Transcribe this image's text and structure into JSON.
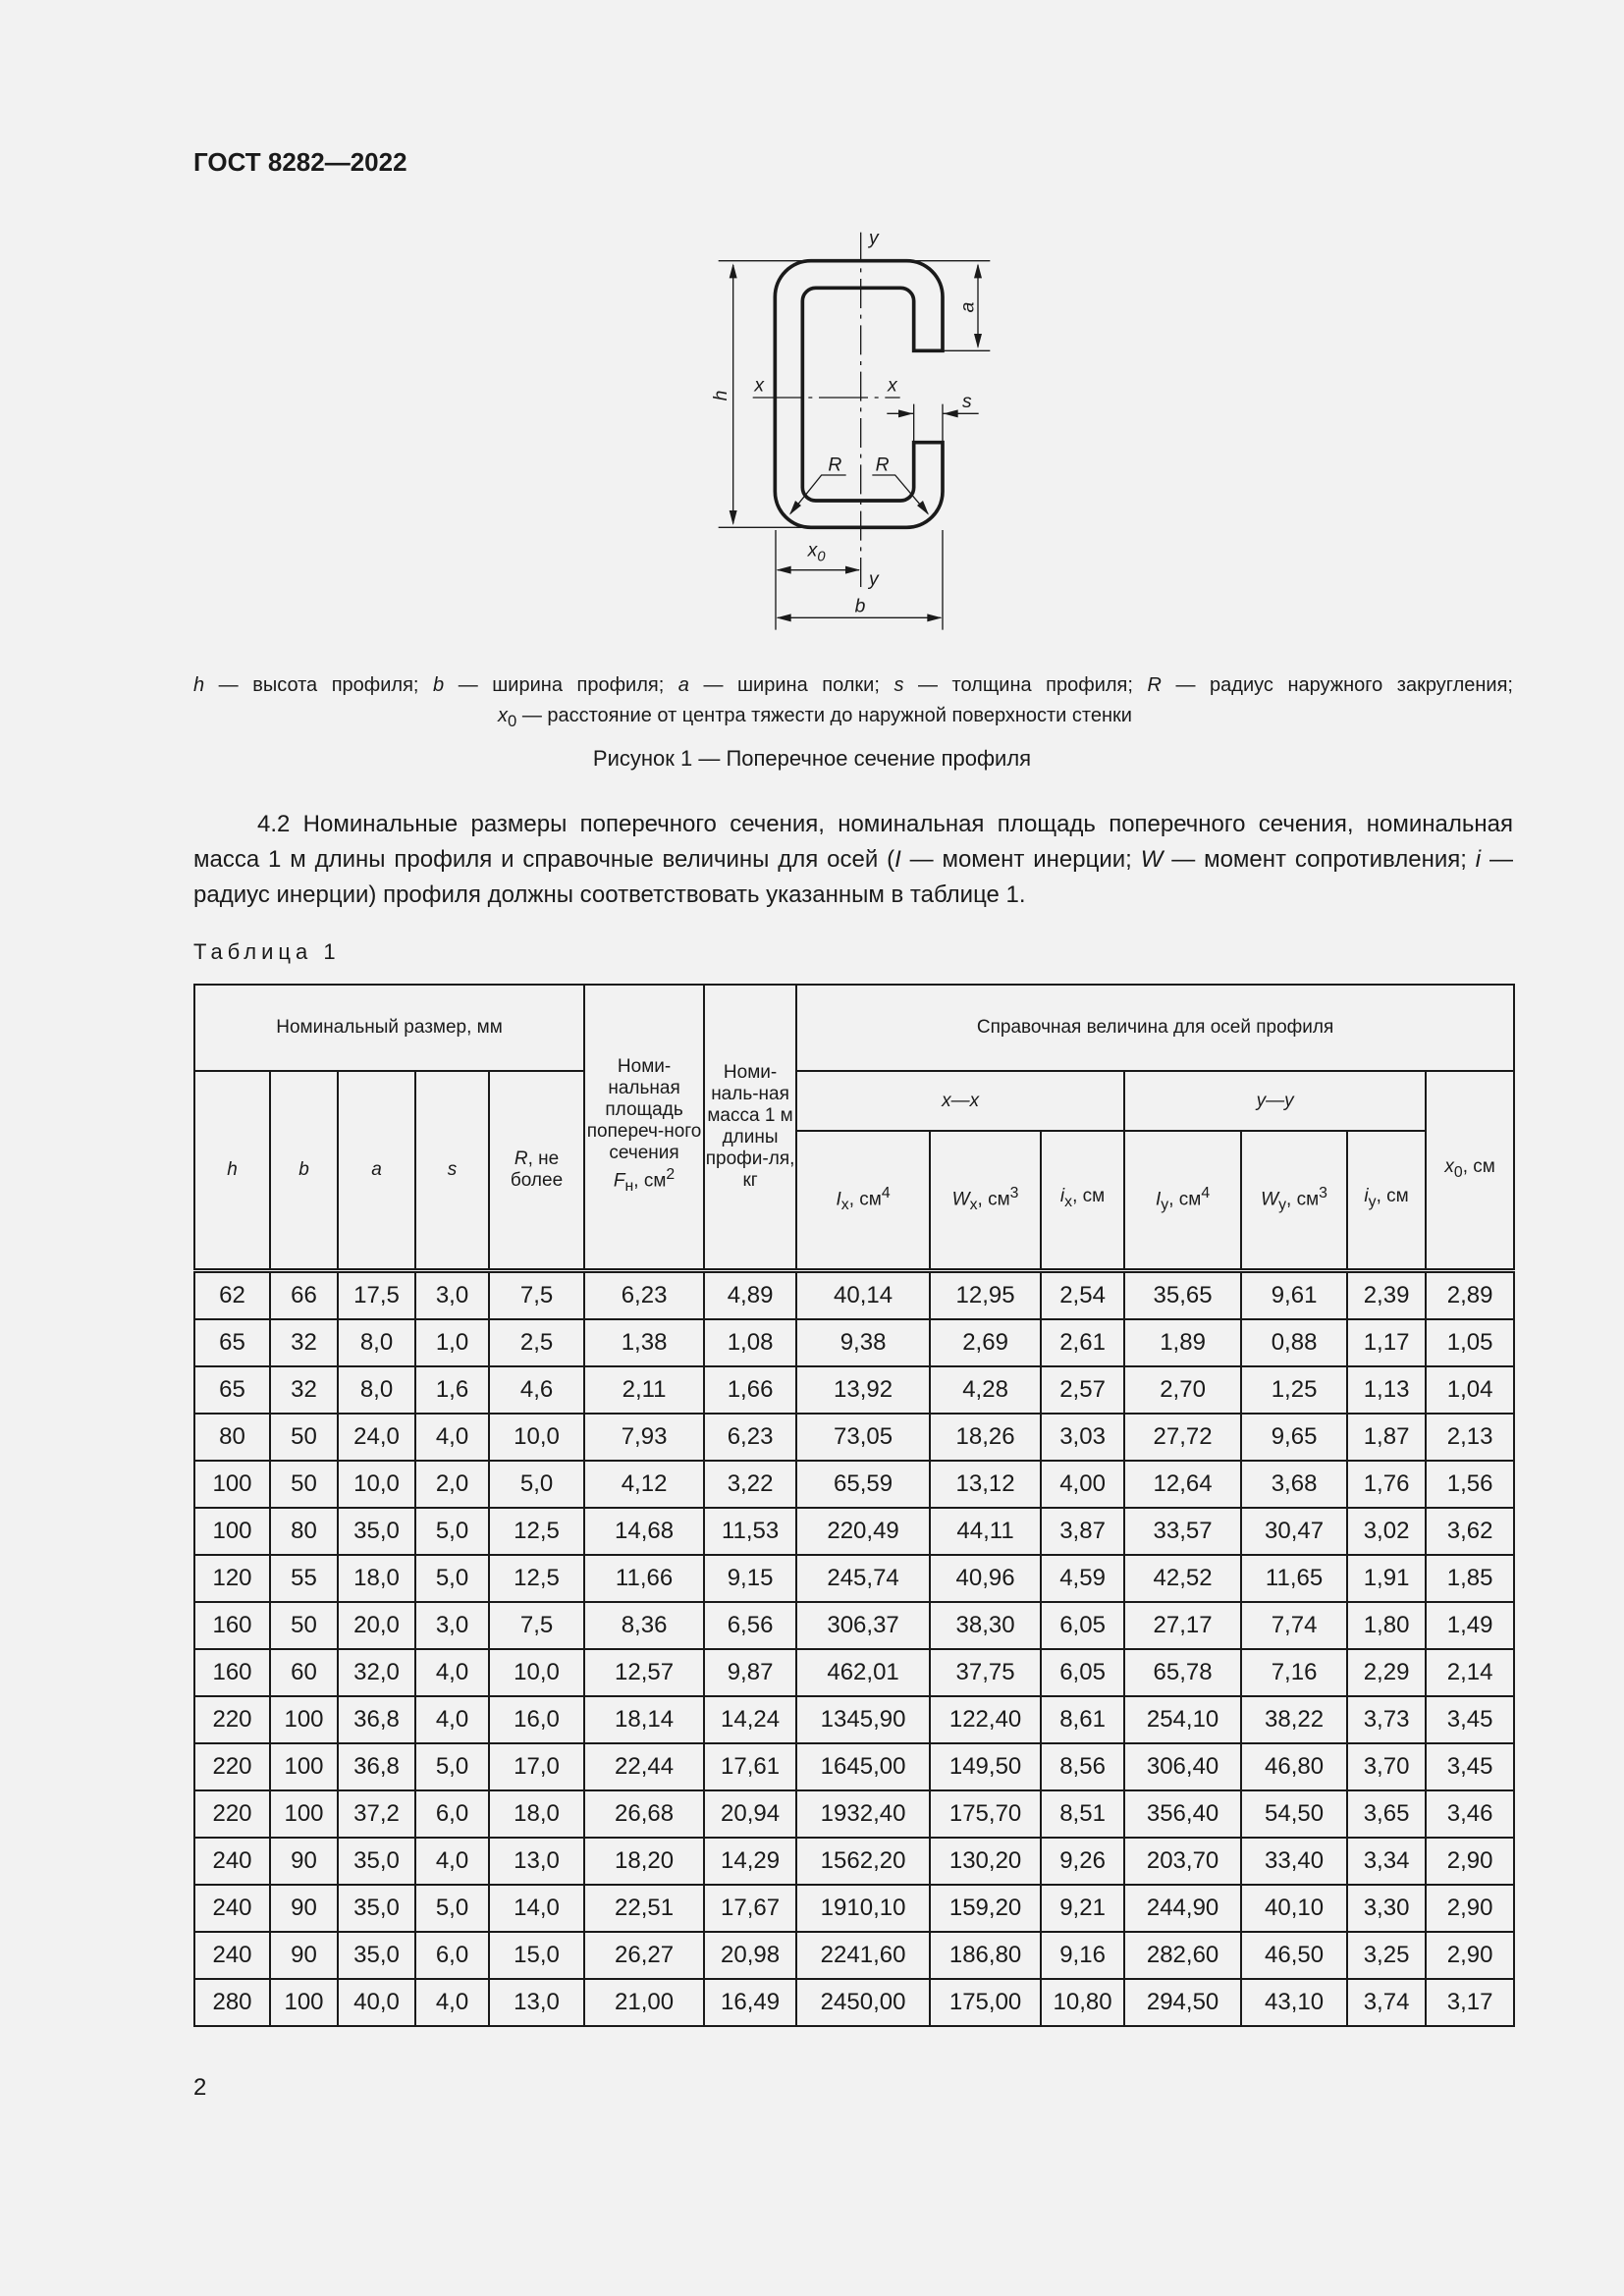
{
  "header": {
    "doc_id": "ГОСТ 8282—2022"
  },
  "figure": {
    "labels": {
      "y_top": "y",
      "y_bottom": "y",
      "x_left": "x",
      "x_right": "x",
      "h": "h",
      "a": "a",
      "s": "s",
      "R_left": "R",
      "R_right": "R",
      "x0": "x",
      "x0_sub": "0",
      "b": "b"
    },
    "legend": {
      "line1": [
        {
          "sym": "h",
          "text": " — высота профиля;  "
        },
        {
          "sym": "b",
          "text": " — ширина профиля; "
        },
        {
          "sym": "a",
          "text": " — ширина полки; "
        },
        {
          "sym": "s",
          "text": " — толщина профиля; "
        },
        {
          "sym": "R",
          "text": " — радиус наружного закругления;"
        }
      ],
      "line2": {
        "sym": "x",
        "sub": "0",
        "text": "  — расстояние от центра тяжести до наружной поверхности стенки"
      }
    },
    "caption": "Рисунок 1 — Поперечное сечение профиля"
  },
  "paragraph": {
    "p1": "4.2 Номинальные размеры поперечного сечения, номинальная площадь поперечного сечения, номинальная масса 1 м длины профиля и справочные величины для осей (",
    "s1": "I",
    "p2": " — момент инерции; ",
    "s2": "W",
    "p3": " — момент сопротивления; ",
    "s3": "i",
    "p4": " — радиус инерции) профиля должны соответствовать указанным в таблице 1."
  },
  "table": {
    "title": "Таблица 1",
    "headers": {
      "nominal_size": "Номинальный размер, мм",
      "h": "h",
      "b": "b",
      "a": "a",
      "s": "s",
      "R": "R",
      "R_suffix": ", не более",
      "area": "Номи-нальная площадь попереч-ного сечения",
      "area_sym": "F",
      "area_sub": "н",
      "area_unit": ", см",
      "area_sup": "2",
      "mass": "Номи-наль-ная масса 1 м длины профи-ля, кг",
      "reference": "Справочная величина для осей профиля",
      "xx": "x—x",
      "yy": "y—y",
      "Ix": {
        "sym": "I",
        "sub": "x",
        "unit": ", см",
        "sup": "4"
      },
      "Wx": {
        "sym": "W",
        "sub": "x",
        "unit": ", см",
        "sup": "3"
      },
      "ix": {
        "sym": "i",
        "sub": "x",
        "unit": ", см",
        "sup": ""
      },
      "Iy": {
        "sym": "I",
        "sub": "y",
        "unit": ", см",
        "sup": "4"
      },
      "Wy": {
        "sym": "W",
        "sub": "y",
        "unit": ", см",
        "sup": "3"
      },
      "iy": {
        "sym": "i",
        "sub": "y",
        "unit": ", см",
        "sup": ""
      },
      "x0": {
        "sym": "x",
        "sub": "0",
        "unit": ", см",
        "sup": ""
      }
    },
    "rows": [
      [
        "62",
        "66",
        "17,5",
        "3,0",
        "7,5",
        "6,23",
        "4,89",
        "40,14",
        "12,95",
        "2,54",
        "35,65",
        "9,61",
        "2,39",
        "2,89"
      ],
      [
        "65",
        "32",
        "8,0",
        "1,0",
        "2,5",
        "1,38",
        "1,08",
        "9,38",
        "2,69",
        "2,61",
        "1,89",
        "0,88",
        "1,17",
        "1,05"
      ],
      [
        "65",
        "32",
        "8,0",
        "1,6",
        "4,6",
        "2,11",
        "1,66",
        "13,92",
        "4,28",
        "2,57",
        "2,70",
        "1,25",
        "1,13",
        "1,04"
      ],
      [
        "80",
        "50",
        "24,0",
        "4,0",
        "10,0",
        "7,93",
        "6,23",
        "73,05",
        "18,26",
        "3,03",
        "27,72",
        "9,65",
        "1,87",
        "2,13"
      ],
      [
        "100",
        "50",
        "10,0",
        "2,0",
        "5,0",
        "4,12",
        "3,22",
        "65,59",
        "13,12",
        "4,00",
        "12,64",
        "3,68",
        "1,76",
        "1,56"
      ],
      [
        "100",
        "80",
        "35,0",
        "5,0",
        "12,5",
        "14,68",
        "11,53",
        "220,49",
        "44,11",
        "3,87",
        "33,57",
        "30,47",
        "3,02",
        "3,62"
      ],
      [
        "120",
        "55",
        "18,0",
        "5,0",
        "12,5",
        "11,66",
        "9,15",
        "245,74",
        "40,96",
        "4,59",
        "42,52",
        "11,65",
        "1,91",
        "1,85"
      ],
      [
        "160",
        "50",
        "20,0",
        "3,0",
        "7,5",
        "8,36",
        "6,56",
        "306,37",
        "38,30",
        "6,05",
        "27,17",
        "7,74",
        "1,80",
        "1,49"
      ],
      [
        "160",
        "60",
        "32,0",
        "4,0",
        "10,0",
        "12,57",
        "9,87",
        "462,01",
        "37,75",
        "6,05",
        "65,78",
        "7,16",
        "2,29",
        "2,14"
      ],
      [
        "220",
        "100",
        "36,8",
        "4,0",
        "16,0",
        "18,14",
        "14,24",
        "1345,90",
        "122,40",
        "8,61",
        "254,10",
        "38,22",
        "3,73",
        "3,45"
      ],
      [
        "220",
        "100",
        "36,8",
        "5,0",
        "17,0",
        "22,44",
        "17,61",
        "1645,00",
        "149,50",
        "8,56",
        "306,40",
        "46,80",
        "3,70",
        "3,45"
      ],
      [
        "220",
        "100",
        "37,2",
        "6,0",
        "18,0",
        "26,68",
        "20,94",
        "1932,40",
        "175,70",
        "8,51",
        "356,40",
        "54,50",
        "3,65",
        "3,46"
      ],
      [
        "240",
        "90",
        "35,0",
        "4,0",
        "13,0",
        "18,20",
        "14,29",
        "1562,20",
        "130,20",
        "9,26",
        "203,70",
        "33,40",
        "3,34",
        "2,90"
      ],
      [
        "240",
        "90",
        "35,0",
        "5,0",
        "14,0",
        "22,51",
        "17,67",
        "1910,10",
        "159,20",
        "9,21",
        "244,90",
        "40,10",
        "3,30",
        "2,90"
      ],
      [
        "240",
        "90",
        "35,0",
        "6,0",
        "15,0",
        "26,27",
        "20,98",
        "2241,60",
        "186,80",
        "9,16",
        "282,60",
        "46,50",
        "3,25",
        "2,90"
      ],
      [
        "280",
        "100",
        "40,0",
        "4,0",
        "13,0",
        "21,00",
        "16,49",
        "2450,00",
        "175,00",
        "10,80",
        "294,50",
        "43,10",
        "3,74",
        "3,17"
      ]
    ]
  },
  "footer": {
    "page_number": "2"
  }
}
